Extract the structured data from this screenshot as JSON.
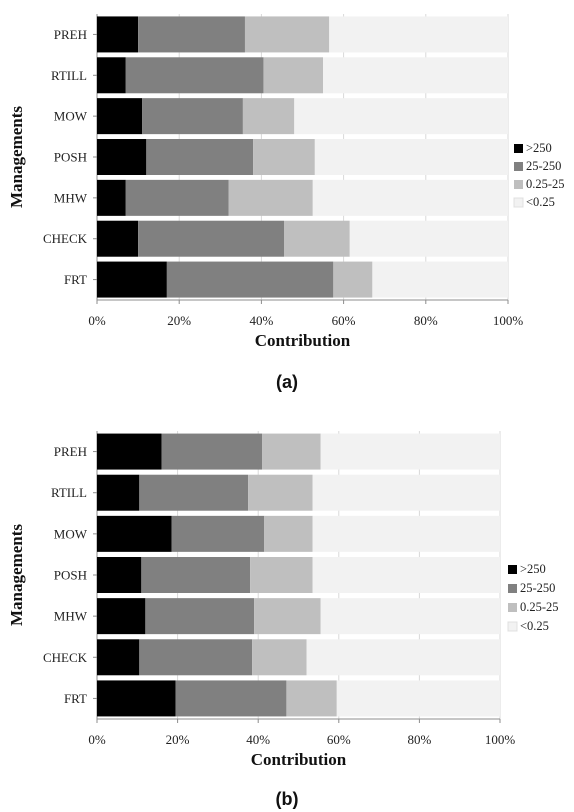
{
  "chart_data": [
    {
      "type": "bar",
      "orientation": "horizontal",
      "stacked": true,
      "panel_label": "(a)",
      "xlabel": "Contribution",
      "ylabel": "Managements",
      "xlim": [
        0,
        100
      ],
      "x_ticks": [
        "0%",
        "20%",
        "40%",
        "60%",
        "80%",
        "100%"
      ],
      "categories": [
        "PREH",
        "RTILL",
        "MOW",
        "POSH",
        "MHW",
        "CHECK",
        "FRT"
      ],
      "series": [
        {
          "name": ">250",
          "color": "#000000",
          "values": [
            10,
            7,
            11,
            12,
            7,
            10,
            17
          ]
        },
        {
          "name": "25-250",
          "color": "#808080",
          "values": [
            26,
            33.5,
            24.5,
            26,
            25,
            35.5,
            40.5
          ]
        },
        {
          "name": "0.25-25",
          "color": "#bfbfbf",
          "values": [
            20.5,
            14.5,
            12.5,
            15,
            20.5,
            16,
            9.5
          ]
        },
        {
          "name": "<0.25",
          "color": "#f2f2f2",
          "values": [
            43.5,
            45,
            52,
            47,
            47.5,
            38.5,
            33
          ]
        }
      ],
      "legend_position": "right",
      "grid": true
    },
    {
      "type": "bar",
      "orientation": "horizontal",
      "stacked": true,
      "panel_label": "(b)",
      "xlabel": "Contribution",
      "ylabel": "Managements",
      "xlim": [
        0,
        100
      ],
      "x_ticks": [
        "0%",
        "20%",
        "40%",
        "60%",
        "80%",
        "100%"
      ],
      "categories": [
        "PREH",
        "RTILL",
        "MOW",
        "POSH",
        "MHW",
        "CHECK",
        "FRT"
      ],
      "series": [
        {
          "name": ">250",
          "color": "#000000",
          "values": [
            16,
            10.5,
            18.5,
            11,
            12,
            10.5,
            19.5
          ]
        },
        {
          "name": "25-250",
          "color": "#808080",
          "values": [
            25,
            27,
            23,
            27,
            27,
            28,
            27.5
          ]
        },
        {
          "name": "0.25-25",
          "color": "#bfbfbf",
          "values": [
            14.5,
            16,
            12,
            15.5,
            16.5,
            13.5,
            12.5
          ]
        },
        {
          "name": "<0.25",
          "color": "#f2f2f2",
          "values": [
            44.5,
            46.5,
            46.5,
            46.5,
            44.5,
            48,
            40.5
          ]
        }
      ],
      "legend_position": "right",
      "grid": true
    }
  ]
}
